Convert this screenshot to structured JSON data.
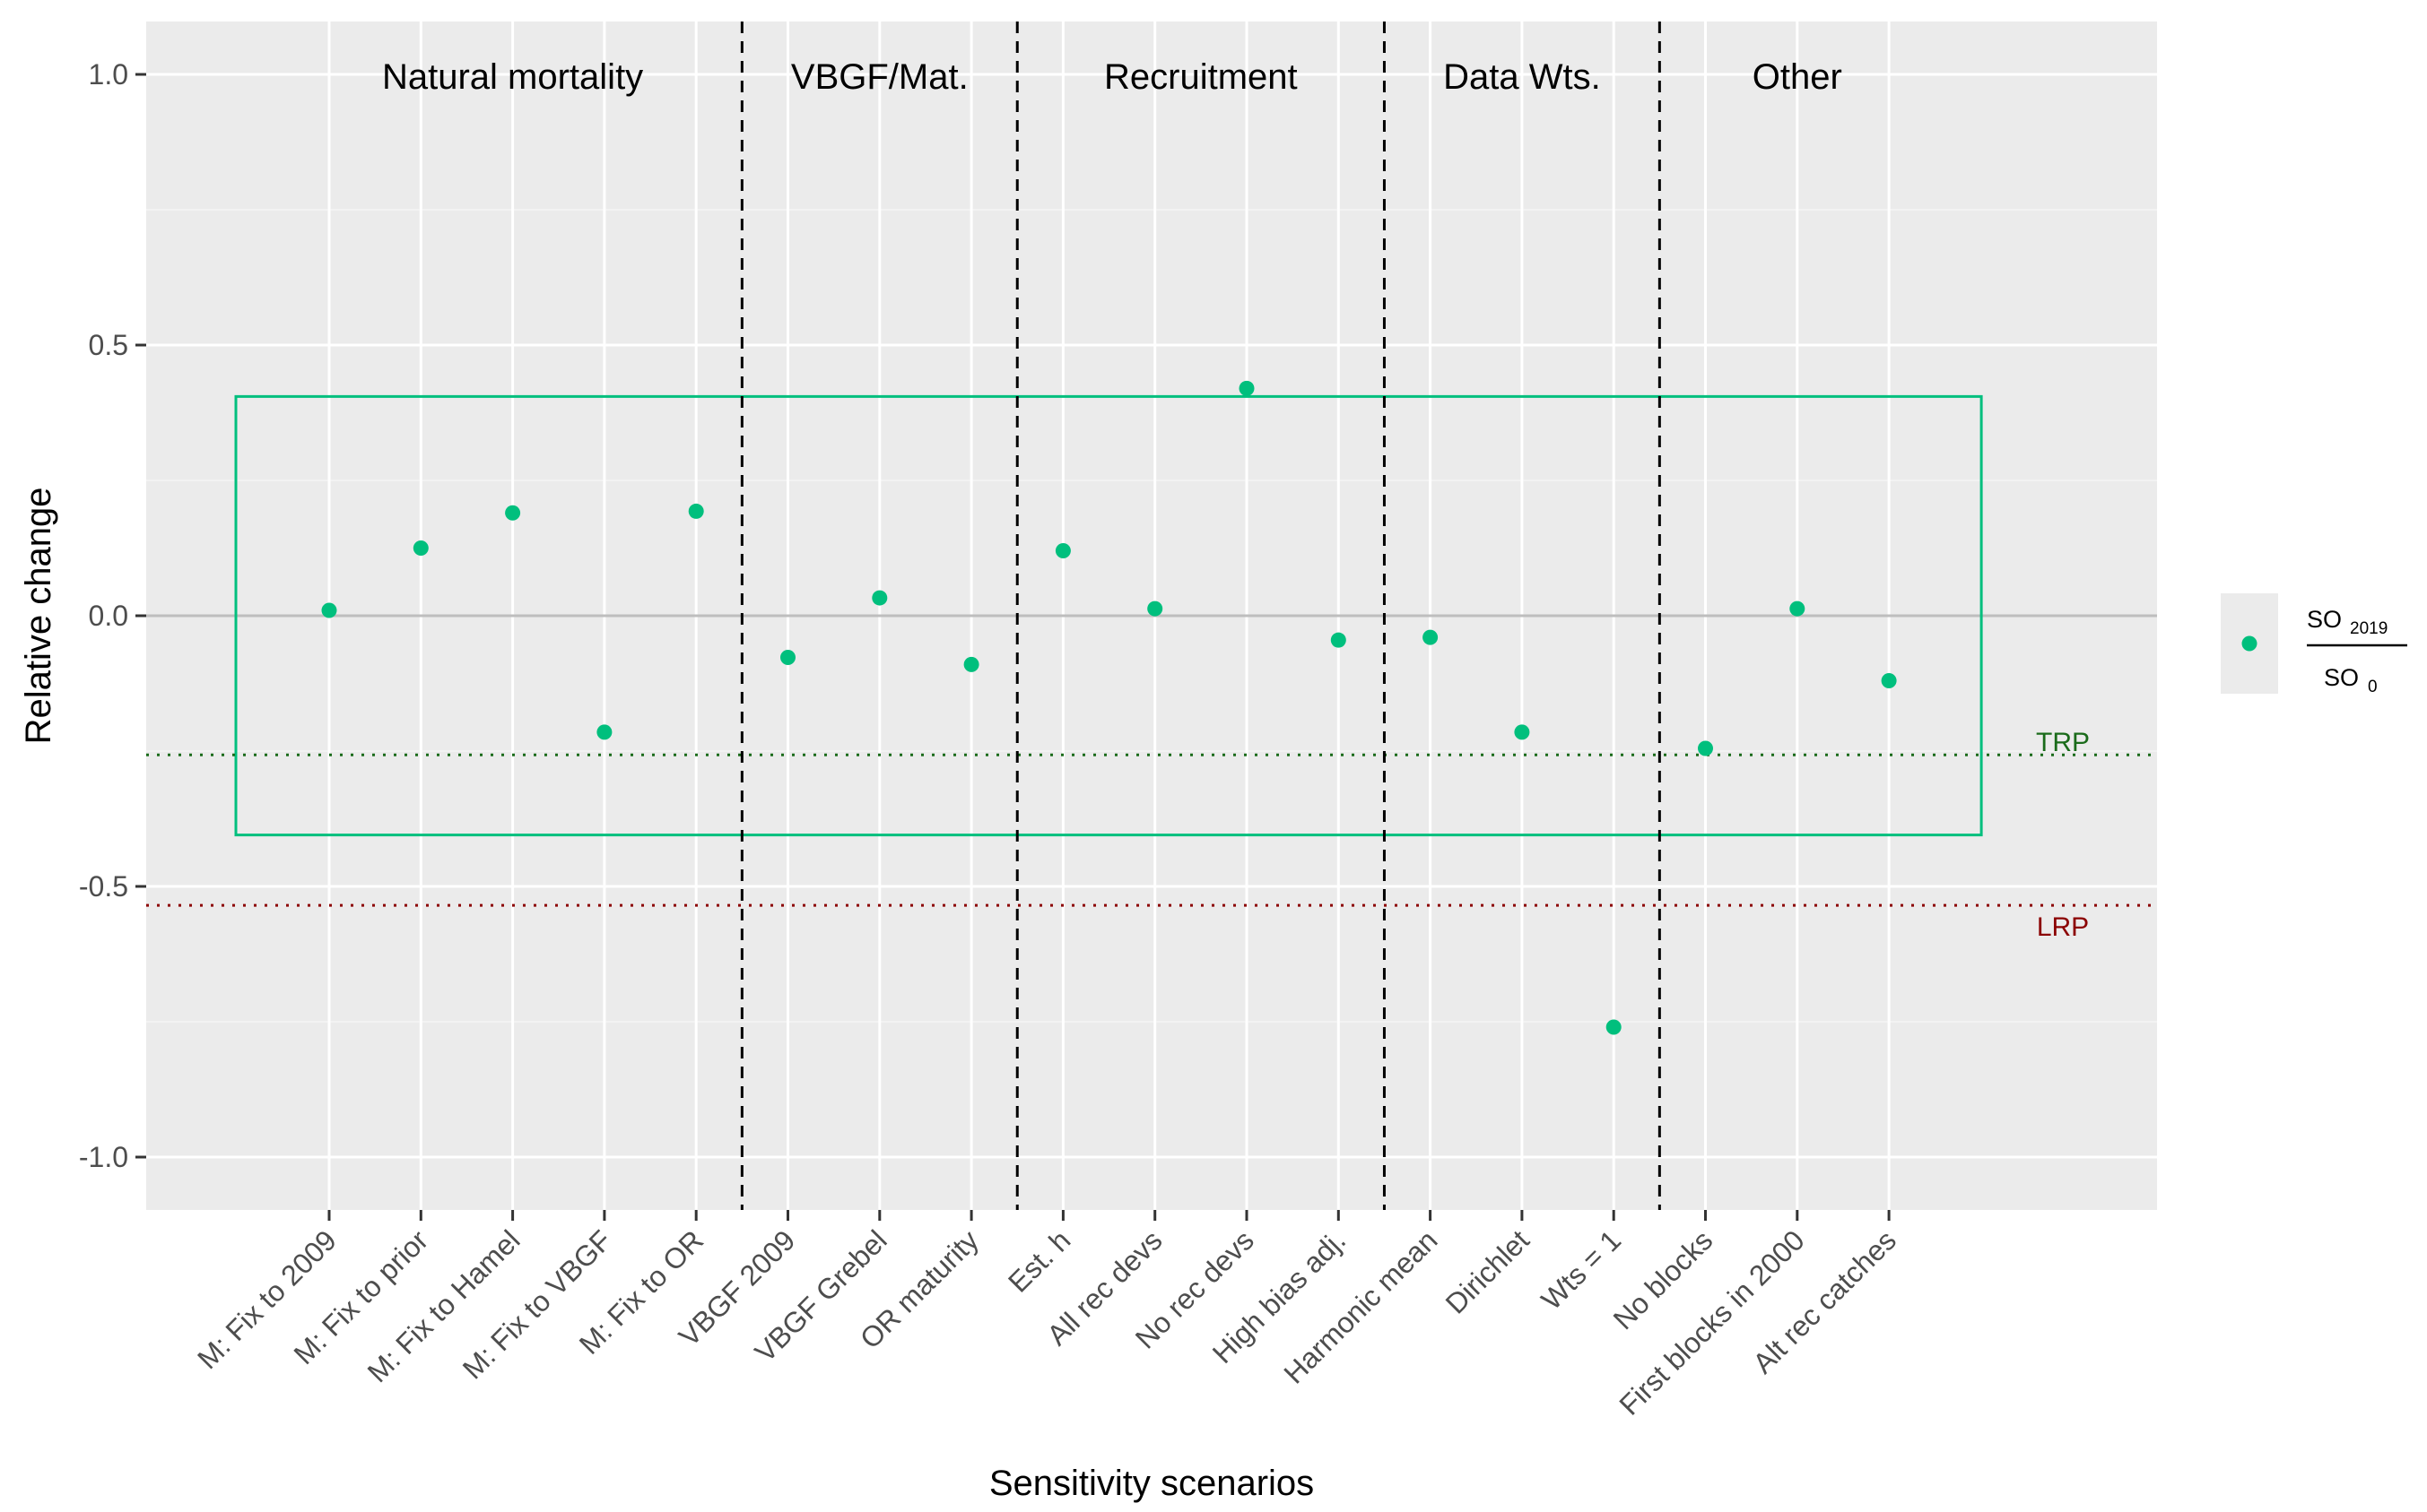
{
  "chart_data": {
    "type": "scatter",
    "xlabel": "Sensitivity scenarios",
    "ylabel": "Relative change",
    "ylim": [
      -1.1,
      1.1
    ],
    "yticks": [
      1.0,
      0.5,
      0.0,
      -0.5,
      -1.0
    ],
    "ytick_labels": [
      "1.0",
      "0.5",
      "0.0",
      "-0.5",
      "-1.0"
    ],
    "categories": [
      "M: Fix to 2009",
      "M: Fix to prior",
      "M: Fix to Hamel",
      "M: Fix to VBGF",
      "M: Fix to OR",
      "VBGF 2009",
      "VBGF Grebel",
      "OR maturity",
      "Est. h",
      "All rec devs",
      "No rec devs",
      "High bias adj.",
      "Harmonic mean",
      "Dirichlet",
      "Wts = 1",
      "No blocks",
      "First blocks in 2000",
      "Alt rec catches"
    ],
    "series": [
      {
        "values": [
          0.01,
          0.125,
          0.19,
          -0.215,
          0.193,
          -0.077,
          0.033,
          -0.09,
          0.12,
          0.013,
          0.42,
          -0.045,
          -0.04,
          -0.215,
          -0.76,
          -0.245,
          0.013,
          -0.12
        ],
        "color": "#00BF7D"
      }
    ],
    "legend": {
      "position": "right",
      "numerator": "SO",
      "numerator_sub": "2019",
      "denominator": "SO",
      "denominator_sub": "0"
    },
    "groups": [
      {
        "label": "Natural mortality",
        "start": 1,
        "end": 5
      },
      {
        "label": "VBGF/Mat.",
        "start": 6,
        "end": 8
      },
      {
        "label": "Recruitment",
        "start": 9,
        "end": 12
      },
      {
        "label": "Data Wts.",
        "start": 13,
        "end": 15
      },
      {
        "label": "Other",
        "start": 16,
        "end": 18
      }
    ],
    "reference_lines": [
      {
        "label": "TRP",
        "value": -0.257,
        "color": "#1a6b1a",
        "style": "dotted"
      },
      {
        "label": "LRP",
        "value": -0.535,
        "color": "#8b0000",
        "style": "dotted"
      }
    ],
    "zero_line": {
      "value": 0,
      "color": "#bebebe"
    },
    "box": {
      "ymin": -0.405,
      "ymax": 0.405,
      "color": "#00BF7D"
    },
    "grid": true,
    "background": "#ebebeb"
  }
}
